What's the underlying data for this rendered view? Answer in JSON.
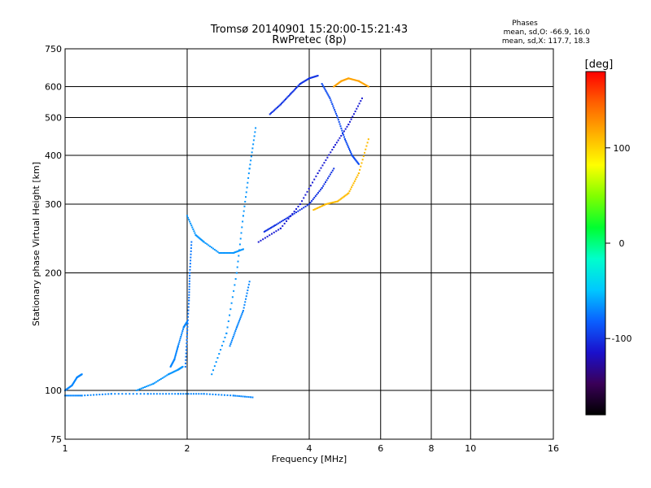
{
  "chart_data": {
    "type": "scatter",
    "title": "Tromsø 20140901 15:20:00-15:21:43",
    "subtitle": "RwPretec (8p)",
    "xlabel": "Frequency [MHz]",
    "ylabel": "Stationary phase Virtual Height [km]",
    "x_scale": "log",
    "y_scale": "log",
    "xlim": [
      1,
      16
    ],
    "ylim": [
      75,
      750
    ],
    "x_ticks": [
      1,
      2,
      4,
      6,
      8,
      10,
      16
    ],
    "x_tick_labels": [
      "1",
      "2",
      "4",
      "6",
      "8",
      "10",
      "16"
    ],
    "y_ticks": [
      75,
      100,
      200,
      300,
      400,
      500,
      600,
      750
    ],
    "y_tick_labels": [
      "75",
      "100",
      "200",
      "300",
      "400",
      "500",
      "600",
      "750"
    ],
    "grid": true,
    "phases": {
      "title": "Phases",
      "line_o": "mean, sd,O: -66.9, 16.0",
      "line_x": "mean, sd,X: 117.7, 18.3"
    },
    "colorbar": {
      "label": "[deg]",
      "range": [
        -180,
        180
      ],
      "ticks": [
        100,
        0,
        -100
      ],
      "tick_labels": [
        "100",
        "0",
        "-100"
      ],
      "colors": [
        "#000000",
        "#3a0058",
        "#1a10cc",
        "#0a60ff",
        "#00c8ff",
        "#00ffcc",
        "#00ff30",
        "#80ff00",
        "#ffff00",
        "#ffb000",
        "#ff6000",
        "#ff0000"
      ]
    },
    "series": [
      {
        "segments": [
          {
            "x": [
              1.0,
              1.1,
              1.3,
              1.6,
              1.9,
              2.2,
              2.6,
              2.9
            ],
            "y": [
              97,
              97,
              98,
              98,
              98,
              98,
              97,
              96
            ],
            "phase": -70
          },
          {
            "x": [
              1.0,
              1.04,
              1.07,
              1.1
            ],
            "y": [
              100,
              103,
              108,
              110
            ],
            "phase": -70
          },
          {
            "x": [
              1.5,
              1.65,
              1.8,
              1.9,
              1.95
            ],
            "y": [
              100,
              104,
              110,
              113,
              115
            ],
            "phase": -65
          },
          {
            "x": [
              1.82,
              1.86,
              1.9,
              1.96,
              2.0
            ],
            "y": [
              115,
              120,
              130,
              145,
              150
            ],
            "phase": -70
          },
          {
            "x": [
              1.98,
              2.0,
              2.02,
              2.03,
              2.05
            ],
            "y": [
              115,
              140,
              170,
              200,
              240
            ],
            "phase": -75
          },
          {
            "x": [
              2.0,
              2.1,
              2.2,
              2.4,
              2.6,
              2.75
            ],
            "y": [
              280,
              250,
              240,
              225,
              225,
              230
            ],
            "phase": -65
          },
          {
            "x": [
              2.3,
              2.5,
              2.65,
              2.75,
              2.85,
              2.95
            ],
            "y": [
              110,
              140,
              200,
              280,
              370,
              470
            ],
            "phase": -65
          },
          {
            "x": [
              2.55,
              2.65,
              2.75,
              2.85
            ],
            "y": [
              130,
              145,
              160,
              190
            ],
            "phase": -70
          },
          {
            "x": [
              3.1,
              3.3,
              3.6,
              4.0,
              4.3,
              4.6
            ],
            "y": [
              255,
              265,
              280,
              300,
              330,
              370
            ],
            "phase": -100
          },
          {
            "x": [
              3.0,
              3.4,
              3.8,
              4.2,
              4.6,
              5.0,
              5.4
            ],
            "y": [
              240,
              260,
              300,
              360,
              420,
              480,
              560
            ],
            "phase": -110
          },
          {
            "x": [
              3.2,
              3.4,
              3.6,
              3.8,
              4.0,
              4.2
            ],
            "y": [
              510,
              540,
              575,
              610,
              630,
              640
            ],
            "phase": -100
          },
          {
            "x": [
              4.3,
              4.5,
              4.7,
              4.9,
              5.1,
              5.3
            ],
            "y": [
              610,
              560,
              500,
              440,
              400,
              380
            ],
            "phase": -90
          },
          {
            "x": [
              4.1,
              4.4,
              4.7,
              5.0,
              5.3,
              5.6
            ],
            "y": [
              290,
              300,
              305,
              320,
              360,
              440
            ],
            "phase": 110
          },
          {
            "x": [
              4.6,
              4.8,
              5.0,
              5.3,
              5.6
            ],
            "y": [
              600,
              620,
              630,
              620,
              600
            ],
            "phase": 120
          }
        ]
      }
    ]
  }
}
